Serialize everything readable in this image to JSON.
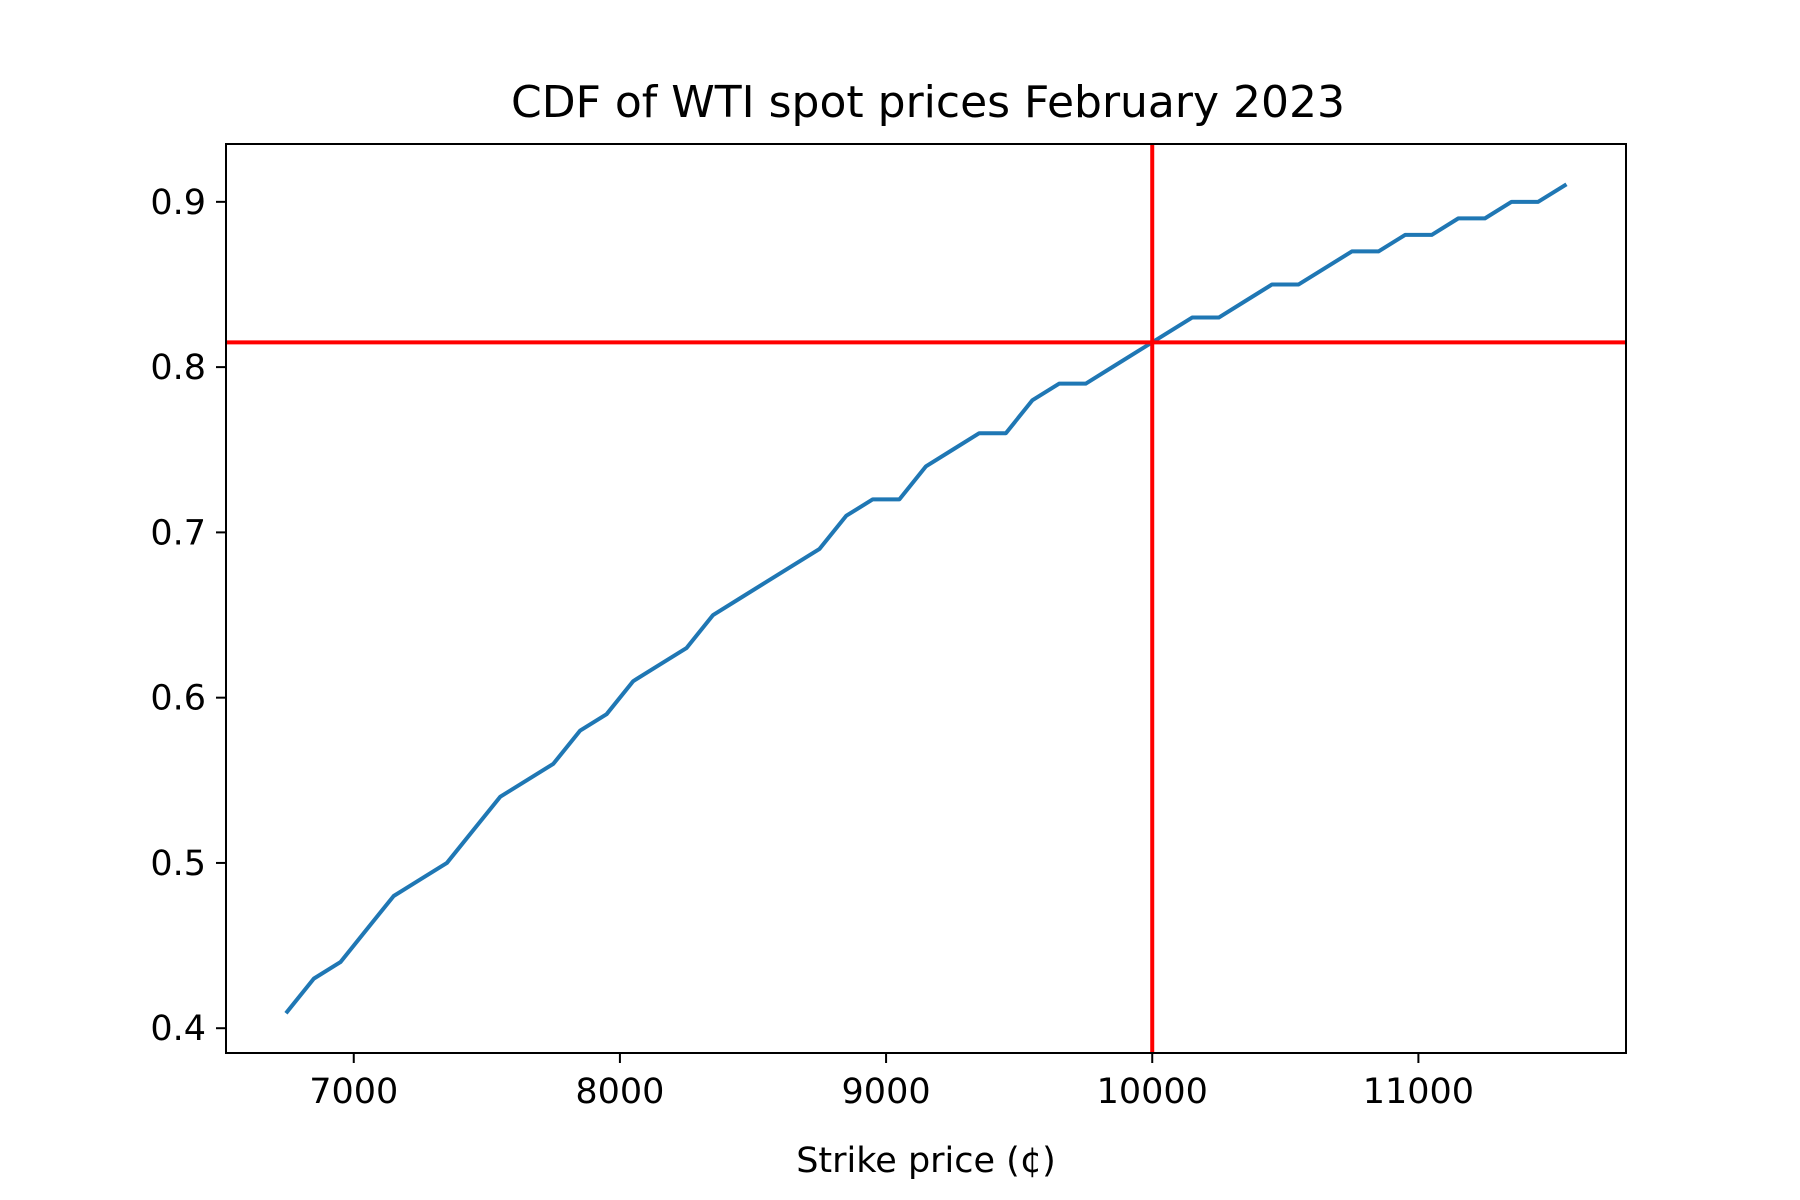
{
  "chart_data": {
    "type": "line",
    "title": "CDF of WTI spot prices February 2023",
    "xlabel": "Strike price (¢)",
    "ylabel": "",
    "xlim": [
      6520,
      11780
    ],
    "ylim": [
      0.385,
      0.935
    ],
    "x_ticks": [
      7000,
      8000,
      9000,
      10000,
      11000
    ],
    "x_tick_labels": [
      "7000",
      "8000",
      "9000",
      "10000",
      "11000"
    ],
    "y_ticks": [
      0.4,
      0.5,
      0.6,
      0.7,
      0.8,
      0.9
    ],
    "y_tick_labels": [
      "0.4",
      "0.5",
      "0.6",
      "0.7",
      "0.8",
      "0.9"
    ],
    "grid": false,
    "series": [
      {
        "color": "#1f77b4",
        "x": [
          6750,
          6850,
          6950,
          7050,
          7150,
          7250,
          7350,
          7450,
          7550,
          7650,
          7750,
          7850,
          7950,
          8050,
          8150,
          8250,
          8350,
          8450,
          8550,
          8650,
          8750,
          8850,
          8950,
          9050,
          9150,
          9250,
          9350,
          9450,
          9550,
          9650,
          9750,
          9850,
          9950,
          10050,
          10150,
          10250,
          10350,
          10450,
          10550,
          10650,
          10750,
          10850,
          10950,
          11050,
          11150,
          11250,
          11350,
          11450,
          11550
        ],
        "y": [
          0.41,
          0.43,
          0.44,
          0.46,
          0.48,
          0.49,
          0.5,
          0.52,
          0.54,
          0.55,
          0.56,
          0.58,
          0.59,
          0.61,
          0.62,
          0.63,
          0.65,
          0.66,
          0.67,
          0.68,
          0.69,
          0.71,
          0.72,
          0.72,
          0.74,
          0.75,
          0.76,
          0.76,
          0.78,
          0.79,
          0.79,
          0.8,
          0.81,
          0.82,
          0.83,
          0.83,
          0.84,
          0.85,
          0.85,
          0.86,
          0.87,
          0.87,
          0.88,
          0.88,
          0.89,
          0.89,
          0.9,
          0.9,
          0.91
        ]
      }
    ],
    "reference_lines": {
      "color": "#ff0000",
      "vertical_x": 10000,
      "horizontal_y": 0.815
    }
  }
}
